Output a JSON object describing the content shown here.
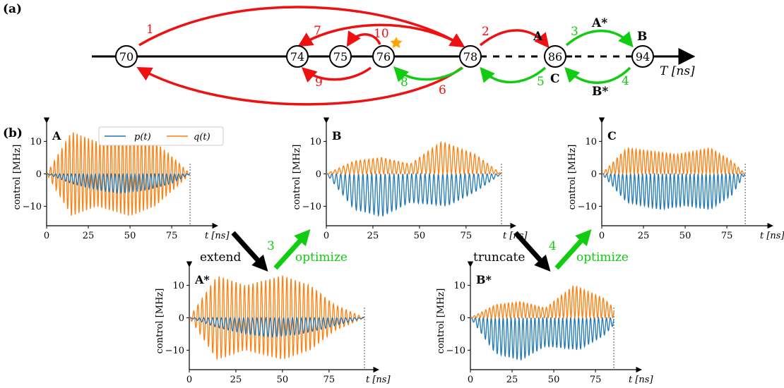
{
  "panel_a": {
    "label": "(a)",
    "axis_label": "T [ns]",
    "nodes": [
      "70",
      "74",
      "75",
      "76",
      "78",
      "86",
      "94"
    ],
    "node_letters": {
      "A": "A",
      "C": "C",
      "B": "B"
    },
    "arrows": [
      {
        "from": "70",
        "to": "78",
        "label": "1",
        "color": "#ee1111"
      },
      {
        "from": "78",
        "to": "86",
        "label": "2",
        "color": "#ee1111"
      },
      {
        "from": "86",
        "to": "94",
        "label": "3",
        "color": "#11cc11",
        "extra": "A*"
      },
      {
        "from": "94",
        "to": "86",
        "label": "4",
        "color": "#11cc11",
        "extra": "B*"
      },
      {
        "from": "86",
        "to": "78",
        "label": "5",
        "color": "#11cc11"
      },
      {
        "from": "78",
        "to": "70",
        "label": "6",
        "color": "#ee1111"
      },
      {
        "from": "78",
        "to": "74",
        "label": "7",
        "color": "#ee1111"
      },
      {
        "from": "78",
        "to": "76",
        "label": "8",
        "color": "#11cc11"
      },
      {
        "from": "76",
        "to": "74",
        "label": "9",
        "color": "#ee1111"
      },
      {
        "from": "76",
        "to": "75",
        "label": "10",
        "color": "#ee1111"
      }
    ],
    "star_color": "#ffa500"
  },
  "panel_b": {
    "label": "(b)",
    "transitions": [
      {
        "text": "extend",
        "number": "",
        "color": "#000000"
      },
      {
        "text": "optimize",
        "number": "3",
        "color": "#11cc11"
      },
      {
        "text": "truncate",
        "number": "",
        "color": "#000000"
      },
      {
        "text": "optimize",
        "number": "4",
        "color": "#11cc11"
      }
    ]
  },
  "colors": {
    "p": "#1f77b4",
    "q": "#ff7f0e",
    "red": "#ee1111",
    "green": "#11cc11"
  },
  "chart_data": [
    {
      "type": "line",
      "title": "A",
      "xlabel": "t [ns]",
      "ylabel": "control [MHz]",
      "xlim": [
        0,
        86
      ],
      "ylim": [
        -16,
        14
      ],
      "xticks": [
        "0",
        "25",
        "50",
        "75"
      ],
      "yticks": [
        "10",
        "0",
        "−10"
      ],
      "end_marker": 86,
      "legend": [
        "p(t)",
        "q(t)"
      ],
      "series": [
        {
          "name": "p(t)",
          "color": "#1f77b4",
          "amplitude_envelope": [
            0,
            3,
            5,
            6,
            5,
            3,
            0
          ],
          "envelope_x": [
            0,
            15,
            30,
            45,
            60,
            75,
            86
          ]
        },
        {
          "name": "q(t)",
          "color": "#ff7f0e",
          "amplitude_envelope": [
            0,
            13,
            10,
            13,
            10,
            4,
            0
          ],
          "envelope_x": [
            0,
            15,
            30,
            50,
            65,
            78,
            86
          ]
        }
      ]
    },
    {
      "type": "line",
      "title": "B",
      "xlabel": "t [ns]",
      "ylabel": "control [MHz]",
      "xlim": [
        0,
        94
      ],
      "ylim": [
        -16,
        14
      ],
      "xticks": [
        "0",
        "25",
        "50",
        "75"
      ],
      "yticks": [
        "10",
        "0",
        "−10"
      ],
      "end_marker": 94,
      "series": [
        {
          "name": "p(t)",
          "color": "#1f77b4",
          "amplitude_envelope": [
            0,
            10,
            12,
            8,
            9,
            5,
            0
          ],
          "envelope_x": [
            0,
            15,
            30,
            45,
            65,
            80,
            94
          ]
        },
        {
          "name": "q(t)",
          "color": "#ff7f0e",
          "amplitude_envelope": [
            0,
            4,
            5,
            3,
            10,
            6,
            0
          ],
          "envelope_x": [
            0,
            15,
            30,
            45,
            62,
            80,
            94
          ]
        }
      ]
    },
    {
      "type": "line",
      "title": "C",
      "xlabel": "t [ns]",
      "ylabel": "control [MHz]",
      "xlim": [
        0,
        86
      ],
      "ylim": [
        -16,
        14
      ],
      "xticks": [
        "0",
        "25",
        "50",
        "75"
      ],
      "yticks": [
        "10",
        "0",
        "−10"
      ],
      "end_marker": 86,
      "series": [
        {
          "name": "p(t)",
          "color": "#1f77b4",
          "amplitude_envelope": [
            0,
            8,
            10,
            9,
            10,
            6,
            0
          ],
          "envelope_x": [
            0,
            15,
            35,
            50,
            65,
            78,
            86
          ]
        },
        {
          "name": "q(t)",
          "color": "#ff7f0e",
          "amplitude_envelope": [
            0,
            8,
            7,
            6,
            8,
            4,
            0
          ],
          "envelope_x": [
            0,
            15,
            30,
            45,
            65,
            78,
            86
          ]
        }
      ]
    },
    {
      "type": "line",
      "title": "A*",
      "xlabel": "t [ns]",
      "ylabel": "control [MHz]",
      "xlim": [
        0,
        94
      ],
      "ylim": [
        -16,
        14
      ],
      "xticks": [
        "0",
        "25",
        "50",
        "75"
      ],
      "yticks": [
        "10",
        "0",
        "−10"
      ],
      "end_marker": 94,
      "series": [
        {
          "name": "p(t)",
          "color": "#1f77b4",
          "amplitude_envelope": [
            0,
            3,
            5,
            6,
            5,
            3,
            0
          ],
          "envelope_x": [
            0,
            15,
            30,
            45,
            60,
            75,
            94
          ]
        },
        {
          "name": "q(t)",
          "color": "#ff7f0e",
          "amplitude_envelope": [
            0,
            13,
            10,
            13,
            10,
            4,
            0
          ],
          "envelope_x": [
            0,
            15,
            30,
            50,
            65,
            78,
            94
          ]
        }
      ]
    },
    {
      "type": "line",
      "title": "B*",
      "xlabel": "t [ns]",
      "ylabel": "control [MHz]",
      "xlim": [
        0,
        86
      ],
      "ylim": [
        -16,
        14
      ],
      "xticks": [
        "0",
        "25",
        "50",
        "75"
      ],
      "yticks": [
        "10",
        "0",
        "−10"
      ],
      "end_marker": 86,
      "series": [
        {
          "name": "p(t)",
          "color": "#1f77b4",
          "amplitude_envelope": [
            0,
            10,
            12,
            8,
            9,
            5,
            2
          ],
          "envelope_x": [
            0,
            15,
            30,
            45,
            65,
            80,
            86
          ]
        },
        {
          "name": "q(t)",
          "color": "#ff7f0e",
          "amplitude_envelope": [
            0,
            4,
            5,
            3,
            10,
            6,
            3
          ],
          "envelope_x": [
            0,
            15,
            30,
            45,
            62,
            80,
            86
          ]
        }
      ]
    }
  ]
}
